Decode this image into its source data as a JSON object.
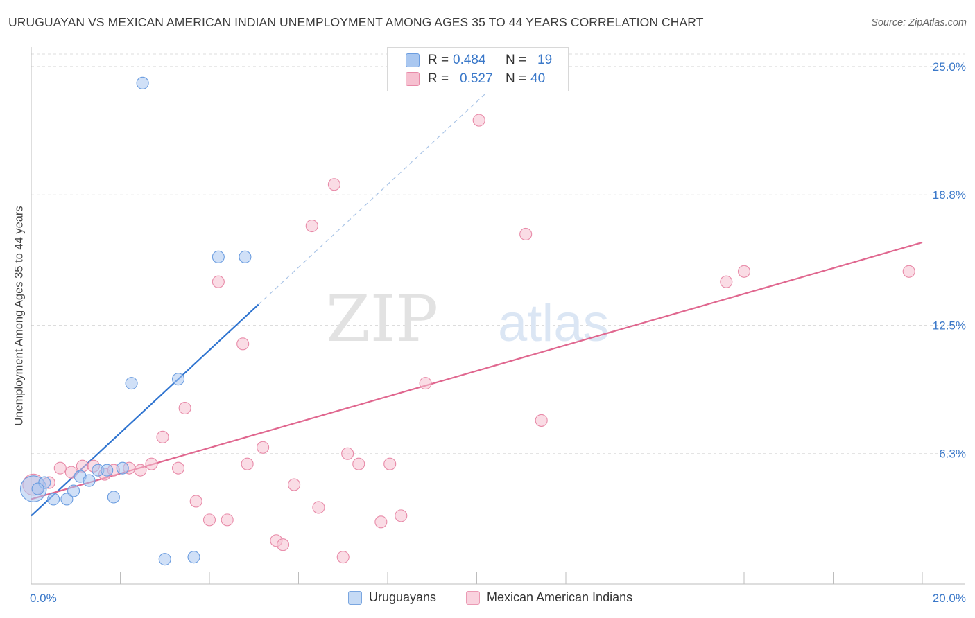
{
  "header": {
    "title": "URUGUAYAN VS MEXICAN AMERICAN INDIAN UNEMPLOYMENT AMONG AGES 35 TO 44 YEARS CORRELATION CHART",
    "source": "Source: ZipAtlas.com"
  },
  "watermark": {
    "zip": "ZIP",
    "atlas": "atlas"
  },
  "legend": {
    "rows": [
      {
        "r_label": "R =",
        "r_value": "0.484",
        "n_label": "N =",
        "n_value": "19",
        "color": "#a9c7f0",
        "border": "#6b9de0"
      },
      {
        "r_label": "R =",
        "r_value": "0.527",
        "n_label": "N =",
        "n_value": "40",
        "color": "#f6c0d0",
        "border": "#e88aa8"
      }
    ]
  },
  "bottom_legend": {
    "items": [
      {
        "label": "Uruguayans",
        "color": "#c5daf5",
        "border": "#7aa6e0"
      },
      {
        "label": "Mexican American Indians",
        "color": "#f9d2de",
        "border": "#eb9ab4"
      }
    ]
  },
  "chart_data": {
    "type": "scatter",
    "title": "URUGUAYAN VS MEXICAN AMERICAN INDIAN UNEMPLOYMENT AMONG AGES 35 TO 44 YEARS CORRELATION CHART",
    "xlabel": "",
    "ylabel": "Unemployment Among Ages 35 to 44 years",
    "xlim": [
      0,
      20
    ],
    "ylim": [
      0,
      25.6
    ],
    "x_tick_labels": [
      {
        "value": 0,
        "label": "0.0%"
      },
      {
        "value": 20,
        "label": "20.0%"
      }
    ],
    "y_tick_labels": [
      {
        "value": 6.3,
        "label": "6.3%"
      },
      {
        "value": 12.5,
        "label": "12.5%"
      },
      {
        "value": 18.8,
        "label": "18.8%"
      },
      {
        "value": 25.0,
        "label": "25.0%"
      }
    ],
    "grid": true,
    "series": [
      {
        "name": "Uruguayans",
        "color": "#6b9de0",
        "fill": "#a9c7f0",
        "trend_color": "#2f74d0",
        "trend": {
          "x0": 0,
          "y0": 3.3,
          "x1": 5.1,
          "y1": 13.5,
          "dashed_to_x": 10.2,
          "dashed_to_y": 23.7
        },
        "points": [
          [
            0.05,
            4.6,
            2.2
          ],
          [
            0.3,
            4.9,
            1
          ],
          [
            0.5,
            4.1,
            1
          ],
          [
            0.8,
            4.1,
            1
          ],
          [
            0.95,
            4.5,
            1
          ],
          [
            1.1,
            5.2,
            1
          ],
          [
            1.3,
            5.0,
            1
          ],
          [
            1.5,
            5.5,
            1
          ],
          [
            1.7,
            5.5,
            1
          ],
          [
            1.85,
            4.2,
            1
          ],
          [
            2.05,
            5.6,
            1
          ],
          [
            2.25,
            9.7,
            1
          ],
          [
            2.5,
            24.2,
            1
          ],
          [
            3.0,
            1.2,
            1
          ],
          [
            3.3,
            9.9,
            1
          ],
          [
            3.65,
            1.3,
            1
          ],
          [
            4.2,
            15.8,
            1
          ],
          [
            4.8,
            15.8,
            1
          ],
          [
            0.15,
            4.6,
            1
          ]
        ]
      },
      {
        "name": "Mexican American Indians",
        "color": "#e88aa8",
        "fill": "#f6c0d0",
        "trend_color": "#e0678f",
        "trend": {
          "x0": 0,
          "y0": 4.1,
          "x1": 20,
          "y1": 16.5
        },
        "points": [
          [
            0.05,
            4.8,
            1.8
          ],
          [
            0.4,
            4.9,
            1
          ],
          [
            0.65,
            5.6,
            1
          ],
          [
            0.9,
            5.4,
            1
          ],
          [
            1.15,
            5.7,
            1
          ],
          [
            1.4,
            5.7,
            1
          ],
          [
            1.65,
            5.3,
            1
          ],
          [
            1.85,
            5.5,
            1
          ],
          [
            2.2,
            5.6,
            1
          ],
          [
            2.45,
            5.5,
            1
          ],
          [
            2.7,
            5.8,
            1
          ],
          [
            2.95,
            7.1,
            1
          ],
          [
            3.3,
            5.6,
            1
          ],
          [
            3.45,
            8.5,
            1
          ],
          [
            3.7,
            4.0,
            1
          ],
          [
            4.0,
            3.1,
            1
          ],
          [
            4.2,
            14.6,
            1
          ],
          [
            4.4,
            3.1,
            1
          ],
          [
            4.75,
            11.6,
            1
          ],
          [
            4.85,
            5.8,
            1
          ],
          [
            5.2,
            6.6,
            1
          ],
          [
            5.5,
            2.1,
            1
          ],
          [
            5.65,
            1.9,
            1
          ],
          [
            5.9,
            4.8,
            1
          ],
          [
            6.3,
            17.3,
            1
          ],
          [
            6.45,
            3.7,
            1
          ],
          [
            6.8,
            19.3,
            1
          ],
          [
            7.0,
            1.3,
            1
          ],
          [
            7.1,
            6.3,
            1
          ],
          [
            7.35,
            5.8,
            1
          ],
          [
            7.85,
            3.0,
            1
          ],
          [
            8.05,
            5.8,
            1
          ],
          [
            8.3,
            3.3,
            1
          ],
          [
            8.85,
            9.7,
            1
          ],
          [
            10.05,
            22.4,
            1
          ],
          [
            11.1,
            16.9,
            1
          ],
          [
            11.45,
            7.9,
            1
          ],
          [
            15.6,
            14.6,
            1
          ],
          [
            16.0,
            15.1,
            1
          ],
          [
            19.7,
            15.1,
            1
          ]
        ]
      }
    ]
  }
}
